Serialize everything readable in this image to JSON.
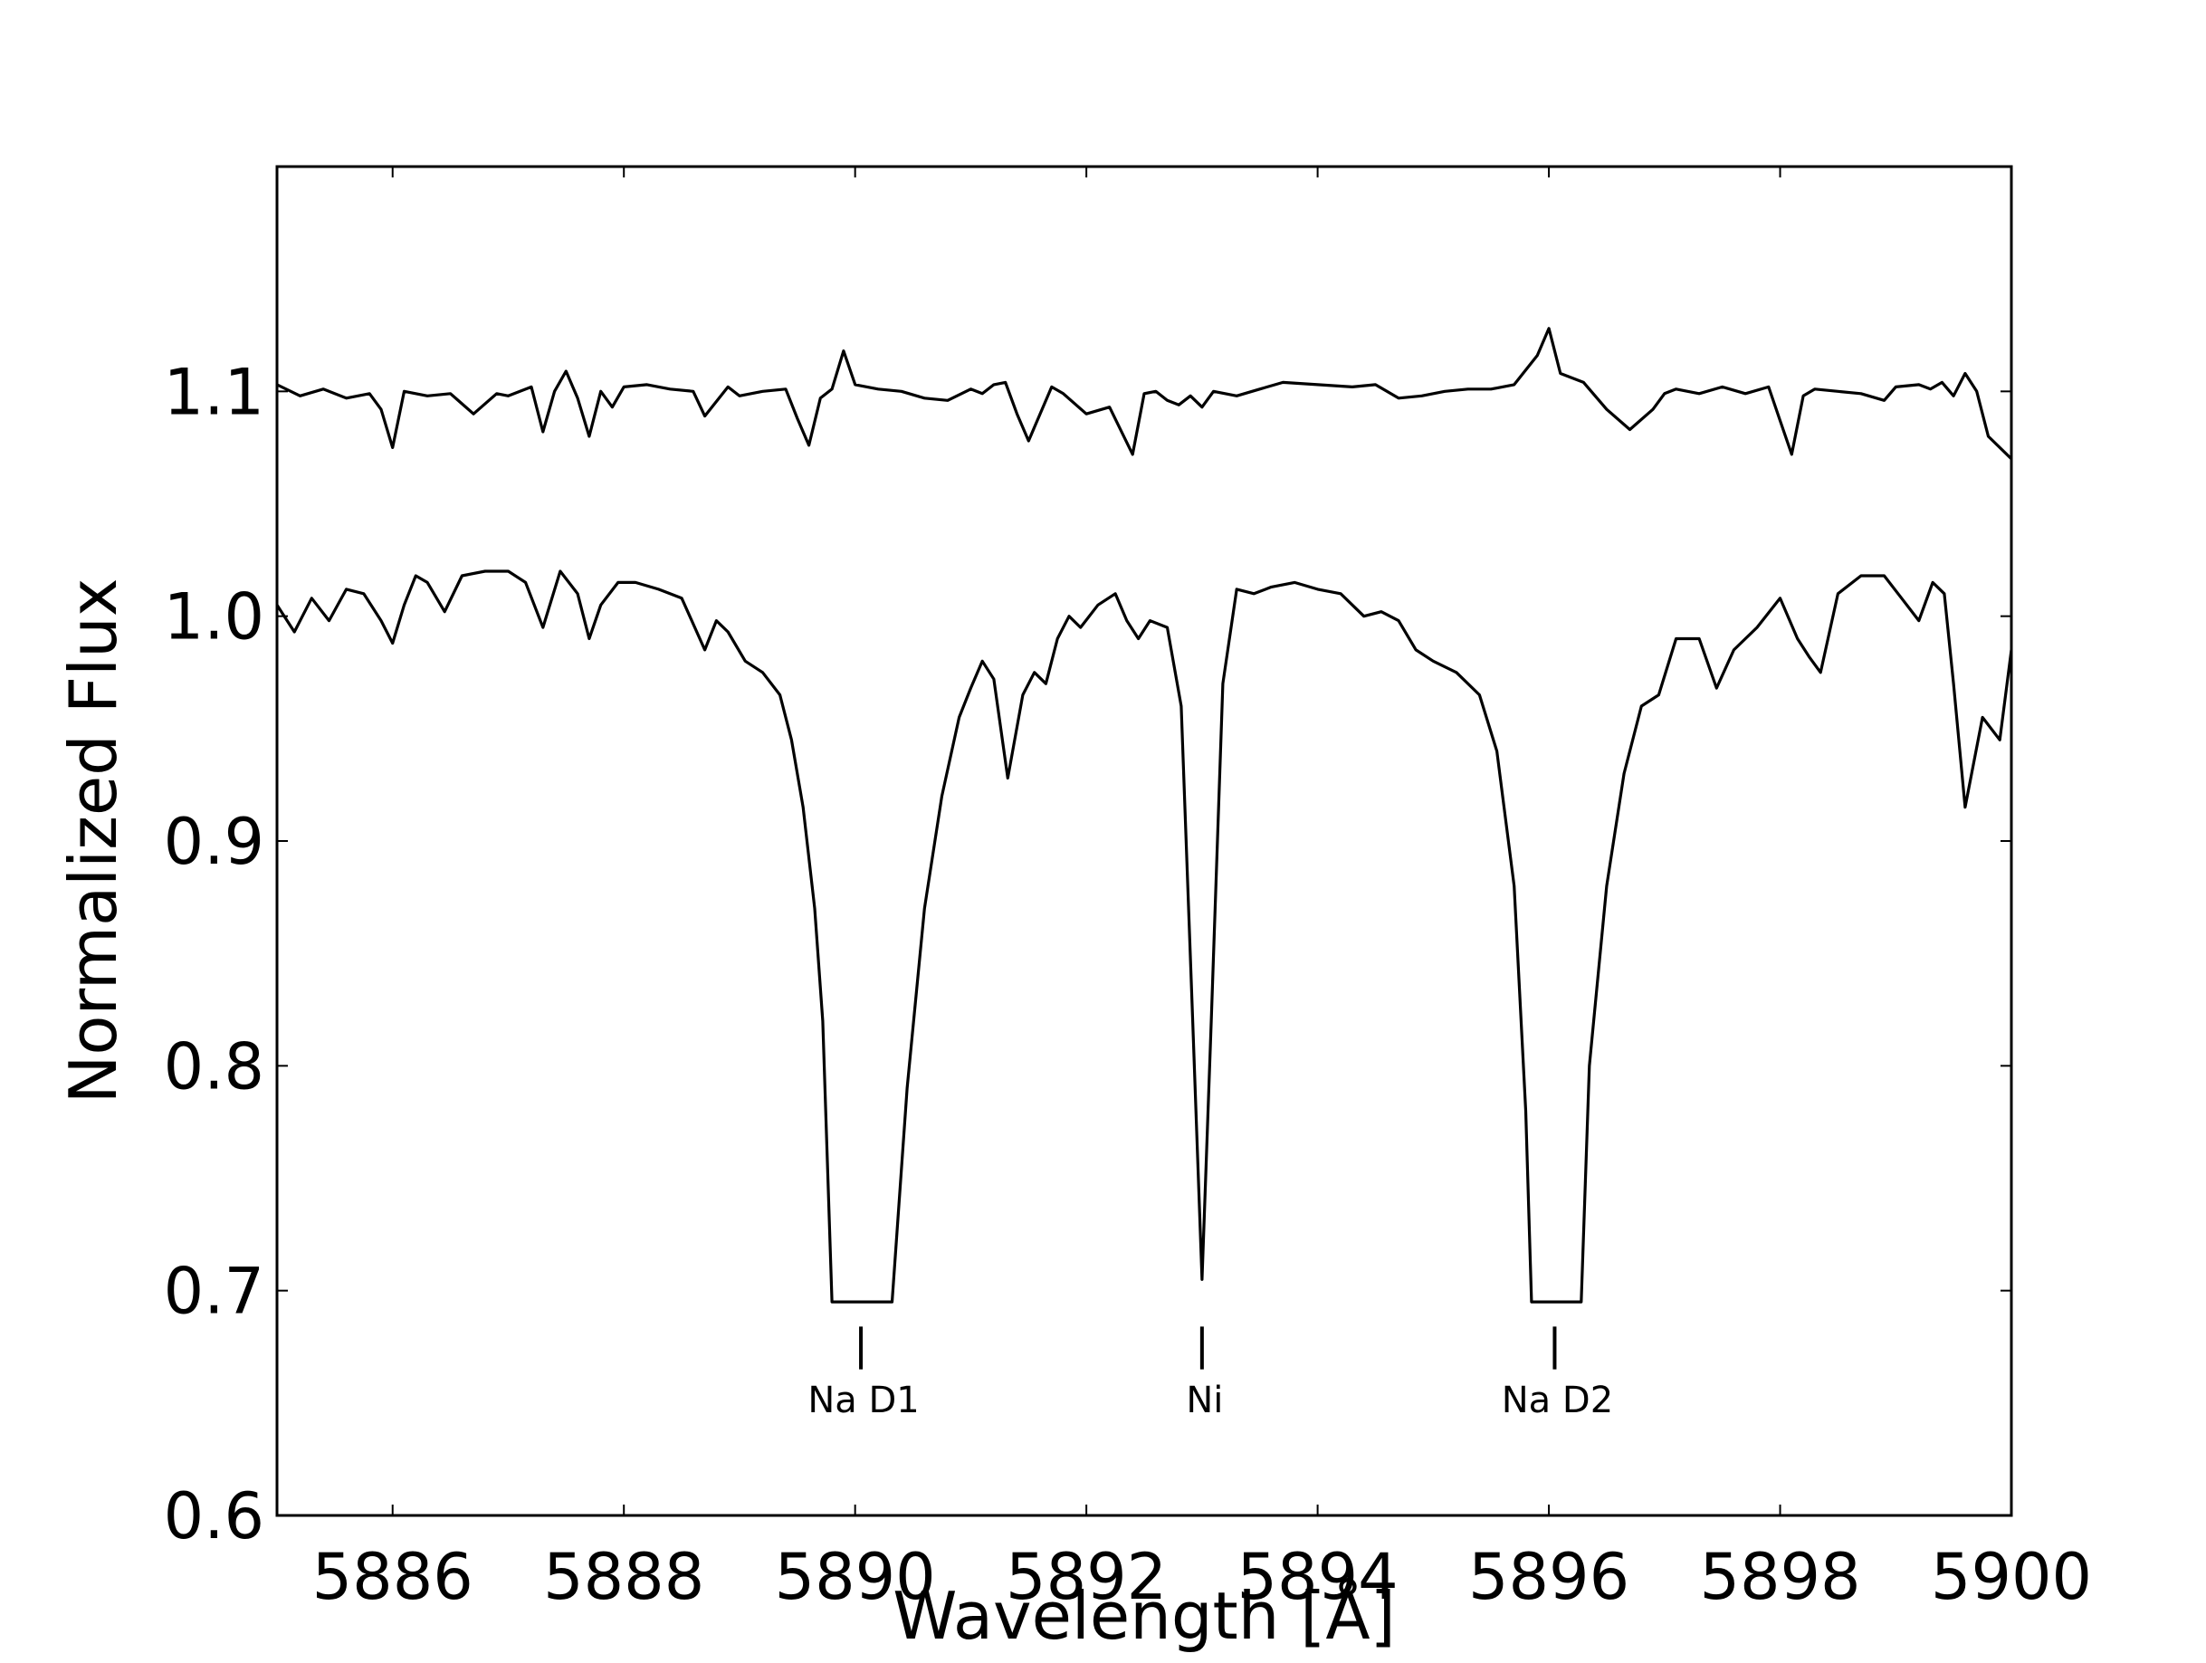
{
  "chart_data": {
    "type": "line",
    "title": "",
    "xlabel": "Wavelength [Å]",
    "ylabel": "Normalized Flux",
    "xlim": [
      5885,
      5900
    ],
    "ylim": [
      0.6,
      1.2
    ],
    "xticks": [
      5886,
      5888,
      5890,
      5892,
      5894,
      5896,
      5898,
      5900
    ],
    "yticks": [
      0.6,
      0.7,
      0.8,
      0.9,
      1.0,
      1.1
    ],
    "xtick_labels": [
      "5886",
      "5888",
      "5890",
      "5892",
      "5894",
      "5896",
      "5898",
      "5900"
    ],
    "ytick_labels": [
      "0.6",
      "0.7",
      "0.8",
      "0.9",
      "1.0",
      "1.1"
    ],
    "grid": false,
    "line_color": "#000000",
    "series": [
      {
        "x": [
          5885.0,
          5885.2,
          5885.4,
          5885.6,
          5885.8,
          5885.9,
          5886.0,
          5886.1,
          5886.3,
          5886.5,
          5886.7,
          5886.9,
          5887.0,
          5887.2,
          5887.3,
          5887.4,
          5887.5,
          5887.6,
          5887.7,
          5887.8,
          5887.9,
          5888.0,
          5888.2,
          5888.4,
          5888.6,
          5888.7,
          5888.9,
          5889.0,
          5889.2,
          5889.4,
          5889.5,
          5889.6,
          5889.7,
          5889.8,
          5889.9,
          5890.0,
          5890.2,
          5890.4,
          5890.6,
          5890.8,
          5891.0,
          5891.1,
          5891.2,
          5891.3,
          5891.4,
          5891.5,
          5891.7,
          5891.8,
          5892.0,
          5892.2,
          5892.4,
          5892.5,
          5892.6,
          5892.7,
          5892.8,
          5892.9,
          5893.0,
          5893.1,
          5893.3,
          5893.5,
          5893.7,
          5894.0,
          5894.3,
          5894.5,
          5894.7,
          5894.9,
          5895.1,
          5895.3,
          5895.5,
          5895.7,
          5895.9,
          5896.0,
          5896.1,
          5896.3,
          5896.5,
          5896.7,
          5896.9,
          5897.0,
          5897.1,
          5897.3,
          5897.5,
          5897.7,
          5897.9,
          5898.0,
          5898.1,
          5898.2,
          5898.3,
          5898.5,
          5898.7,
          5898.9,
          5899.0,
          5899.2,
          5899.3,
          5899.4,
          5899.5,
          5899.6,
          5899.7,
          5899.8,
          5900.0
        ],
        "y": [
          1.103,
          1.098,
          1.101,
          1.097,
          1.099,
          1.092,
          1.075,
          1.1,
          1.098,
          1.099,
          1.09,
          1.099,
          1.098,
          1.102,
          1.082,
          1.1,
          1.109,
          1.097,
          1.08,
          1.1,
          1.093,
          1.102,
          1.103,
          1.101,
          1.1,
          1.089,
          1.102,
          1.098,
          1.1,
          1.101,
          1.088,
          1.076,
          1.097,
          1.101,
          1.118,
          1.103,
          1.101,
          1.1,
          1.097,
          1.096,
          1.101,
          1.099,
          1.103,
          1.104,
          1.09,
          1.078,
          1.102,
          1.099,
          1.09,
          1.093,
          1.072,
          1.099,
          1.1,
          1.096,
          1.094,
          1.098,
          1.093,
          1.1,
          1.098,
          1.101,
          1.104,
          1.103,
          1.102,
          1.103,
          1.097,
          1.098,
          1.1,
          1.101,
          1.101,
          1.103,
          1.116,
          1.128,
          1.108,
          1.104,
          1.092,
          1.083,
          1.092,
          1.099,
          1.101,
          1.099,
          1.102,
          1.099,
          1.102,
          1.087,
          1.072,
          1.098,
          1.101,
          1.1,
          1.099,
          1.096,
          1.102,
          1.103,
          1.101,
          1.104,
          1.098,
          1.108,
          1.1,
          1.08,
          1.07
        ]
      },
      {
        "x": [
          5885.0,
          5885.15,
          5885.3,
          5885.45,
          5885.6,
          5885.75,
          5885.9,
          5886.0,
          5886.1,
          5886.2,
          5886.3,
          5886.45,
          5886.6,
          5886.8,
          5887.0,
          5887.15,
          5887.3,
          5887.45,
          5887.6,
          5887.7,
          5887.8,
          5887.95,
          5888.1,
          5888.3,
          5888.5,
          5888.7,
          5888.8,
          5888.9,
          5889.05,
          5889.2,
          5889.35,
          5889.45,
          5889.55,
          5889.65,
          5889.72,
          5889.8,
          5890.32,
          5890.45,
          5890.6,
          5890.75,
          5890.9,
          5891.0,
          5891.1,
          5891.2,
          5891.32,
          5891.45,
          5891.55,
          5891.65,
          5891.75,
          5891.85,
          5891.95,
          5892.1,
          5892.25,
          5892.35,
          5892.45,
          5892.55,
          5892.7,
          5892.82,
          5892.92,
          5893.0,
          5893.08,
          5893.18,
          5893.3,
          5893.45,
          5893.6,
          5893.8,
          5894.0,
          5894.2,
          5894.4,
          5894.55,
          5894.7,
          5894.85,
          5895.0,
          5895.2,
          5895.4,
          5895.55,
          5895.7,
          5895.8,
          5895.85,
          5896.28,
          5896.35,
          5896.5,
          5896.65,
          5896.8,
          5896.95,
          5897.1,
          5897.3,
          5897.45,
          5897.6,
          5897.8,
          5898.0,
          5898.15,
          5898.25,
          5898.35,
          5898.5,
          5898.7,
          5898.9,
          5899.05,
          5899.2,
          5899.32,
          5899.42,
          5899.5,
          5899.6,
          5899.75,
          5899.9,
          5900.0
        ],
        "y": [
          1.005,
          0.993,
          1.008,
          0.998,
          1.012,
          1.01,
          0.998,
          0.988,
          1.005,
          1.018,
          1.015,
          1.002,
          1.018,
          1.02,
          1.02,
          1.015,
          0.995,
          1.02,
          1.01,
          0.99,
          1.005,
          1.015,
          1.015,
          1.012,
          1.008,
          0.985,
          0.998,
          0.993,
          0.98,
          0.975,
          0.965,
          0.945,
          0.915,
          0.87,
          0.82,
          0.695,
          0.695,
          0.79,
          0.87,
          0.92,
          0.955,
          0.968,
          0.98,
          0.972,
          0.928,
          0.965,
          0.975,
          0.97,
          0.99,
          1.0,
          0.995,
          1.005,
          1.01,
          0.998,
          0.99,
          0.998,
          0.995,
          0.96,
          0.82,
          0.705,
          0.82,
          0.97,
          1.012,
          1.01,
          1.013,
          1.015,
          1.012,
          1.01,
          1.0,
          1.002,
          0.998,
          0.985,
          0.98,
          0.975,
          0.965,
          0.94,
          0.88,
          0.78,
          0.695,
          0.695,
          0.8,
          0.88,
          0.93,
          0.96,
          0.965,
          0.99,
          0.99,
          0.968,
          0.985,
          0.995,
          1.008,
          0.99,
          0.982,
          0.975,
          1.01,
          1.018,
          1.018,
          1.008,
          0.998,
          1.015,
          1.01,
          0.97,
          0.915,
          0.955,
          0.945,
          0.985
        ]
      }
    ],
    "annotations": [
      {
        "x": 5890.05,
        "label": "Na D1"
      },
      {
        "x": 5893.0,
        "label": "Ni"
      },
      {
        "x": 5896.05,
        "label": "Na D2"
      }
    ]
  }
}
